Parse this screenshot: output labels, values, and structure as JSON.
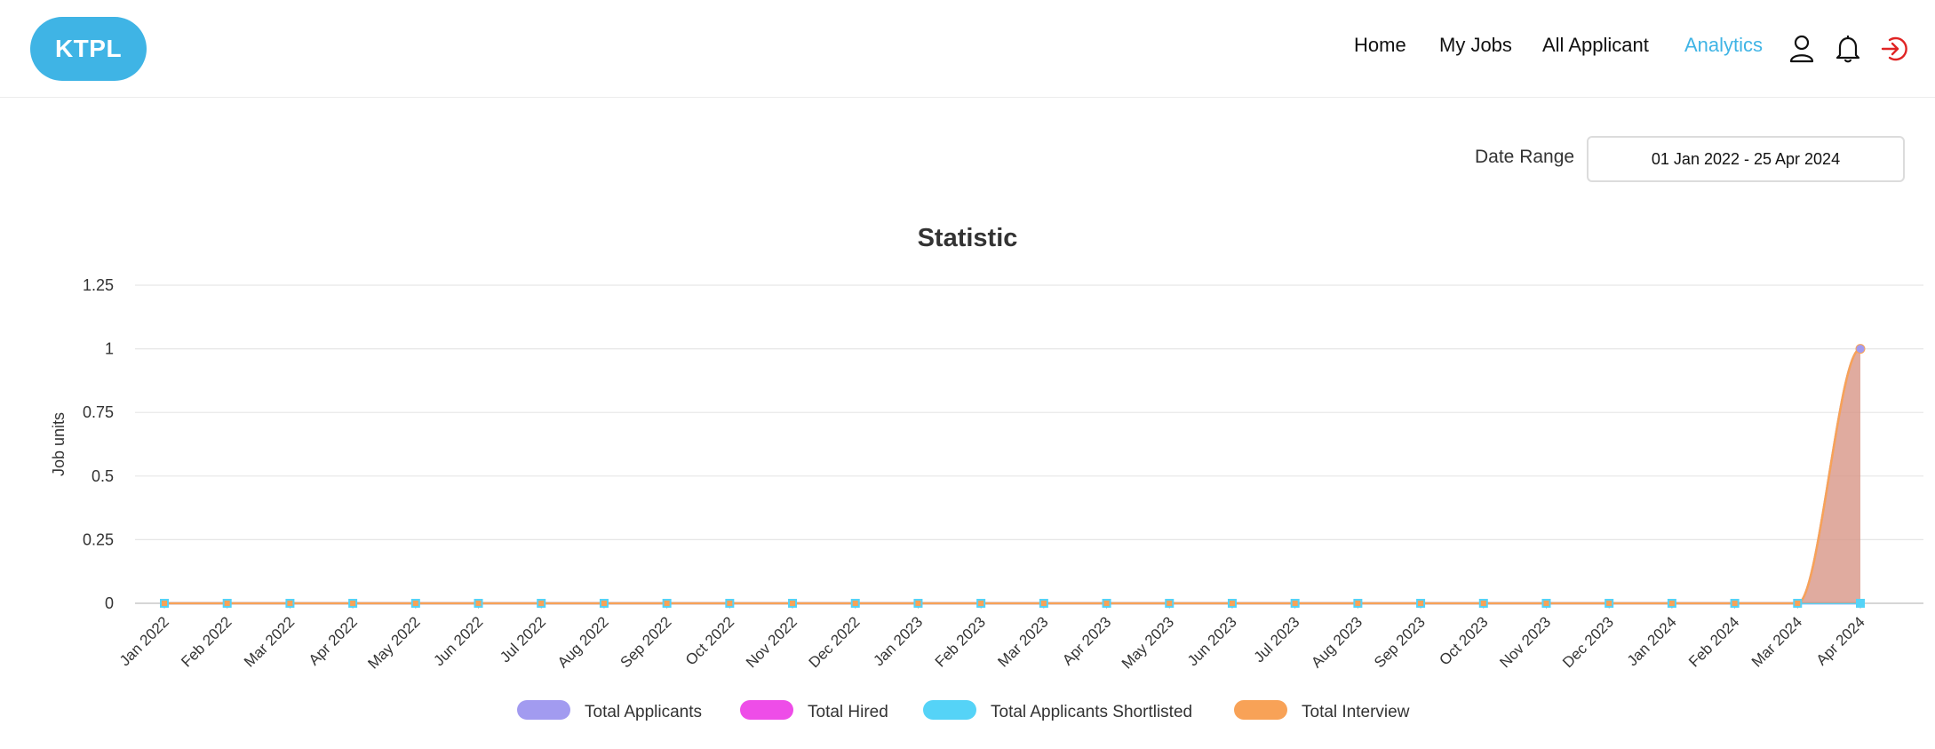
{
  "navbar": {
    "logo": "KTPL",
    "items": [
      {
        "label": "Home",
        "active": false
      },
      {
        "label": "My Jobs",
        "active": false
      },
      {
        "label": "All Applicant",
        "active": false
      },
      {
        "label": "Analytics",
        "active": true
      }
    ],
    "accent_color": "#3fb4e5",
    "logout_color": "#e02424"
  },
  "filters": {
    "date_range_label": "Date Range",
    "date_range_value": "01 Jan 2022 - 25 Apr 2024"
  },
  "chart_data": {
    "type": "line",
    "title": "Statistic",
    "ylabel": "Job units",
    "xlabel": "",
    "ylim": [
      0,
      1.25
    ],
    "yticks": [
      "0",
      "0.25",
      "0.5",
      "0.75",
      "1",
      "1.25"
    ],
    "grid": true,
    "legend_position": "bottom",
    "categories": [
      "Jan 2022",
      "Feb 2022",
      "Mar 2022",
      "Apr 2022",
      "May 2022",
      "Jun 2022",
      "Jul 2022",
      "Aug 2022",
      "Sep 2022",
      "Oct 2022",
      "Nov 2022",
      "Dec 2022",
      "Jan 2023",
      "Feb 2023",
      "Mar 2023",
      "Apr 2023",
      "May 2023",
      "Jun 2023",
      "Jul 2023",
      "Aug 2023",
      "Sep 2023",
      "Oct 2023",
      "Nov 2023",
      "Dec 2023",
      "Jan 2024",
      "Feb 2024",
      "Mar 2024",
      "Apr 2024"
    ],
    "series": [
      {
        "name": "Total Applicants",
        "color": "#a29bf0",
        "values": [
          0,
          0,
          0,
          0,
          0,
          0,
          0,
          0,
          0,
          0,
          0,
          0,
          0,
          0,
          0,
          0,
          0,
          0,
          0,
          0,
          0,
          0,
          0,
          0,
          0,
          0,
          0,
          1
        ]
      },
      {
        "name": "Total Hired",
        "color": "#ee4de8",
        "values": [
          0,
          0,
          0,
          0,
          0,
          0,
          0,
          0,
          0,
          0,
          0,
          0,
          0,
          0,
          0,
          0,
          0,
          0,
          0,
          0,
          0,
          0,
          0,
          0,
          0,
          0,
          0,
          0
        ]
      },
      {
        "name": "Total Applicants Shortlisted",
        "color": "#55d3f7",
        "values": [
          0,
          0,
          0,
          0,
          0,
          0,
          0,
          0,
          0,
          0,
          0,
          0,
          0,
          0,
          0,
          0,
          0,
          0,
          0,
          0,
          0,
          0,
          0,
          0,
          0,
          0,
          0,
          0
        ]
      },
      {
        "name": "Total Interview",
        "color": "#f8a257",
        "values": [
          0,
          0,
          0,
          0,
          0,
          0,
          0,
          0,
          0,
          0,
          0,
          0,
          0,
          0,
          0,
          0,
          0,
          0,
          0,
          0,
          0,
          0,
          0,
          0,
          0,
          0,
          0,
          1
        ]
      }
    ]
  }
}
